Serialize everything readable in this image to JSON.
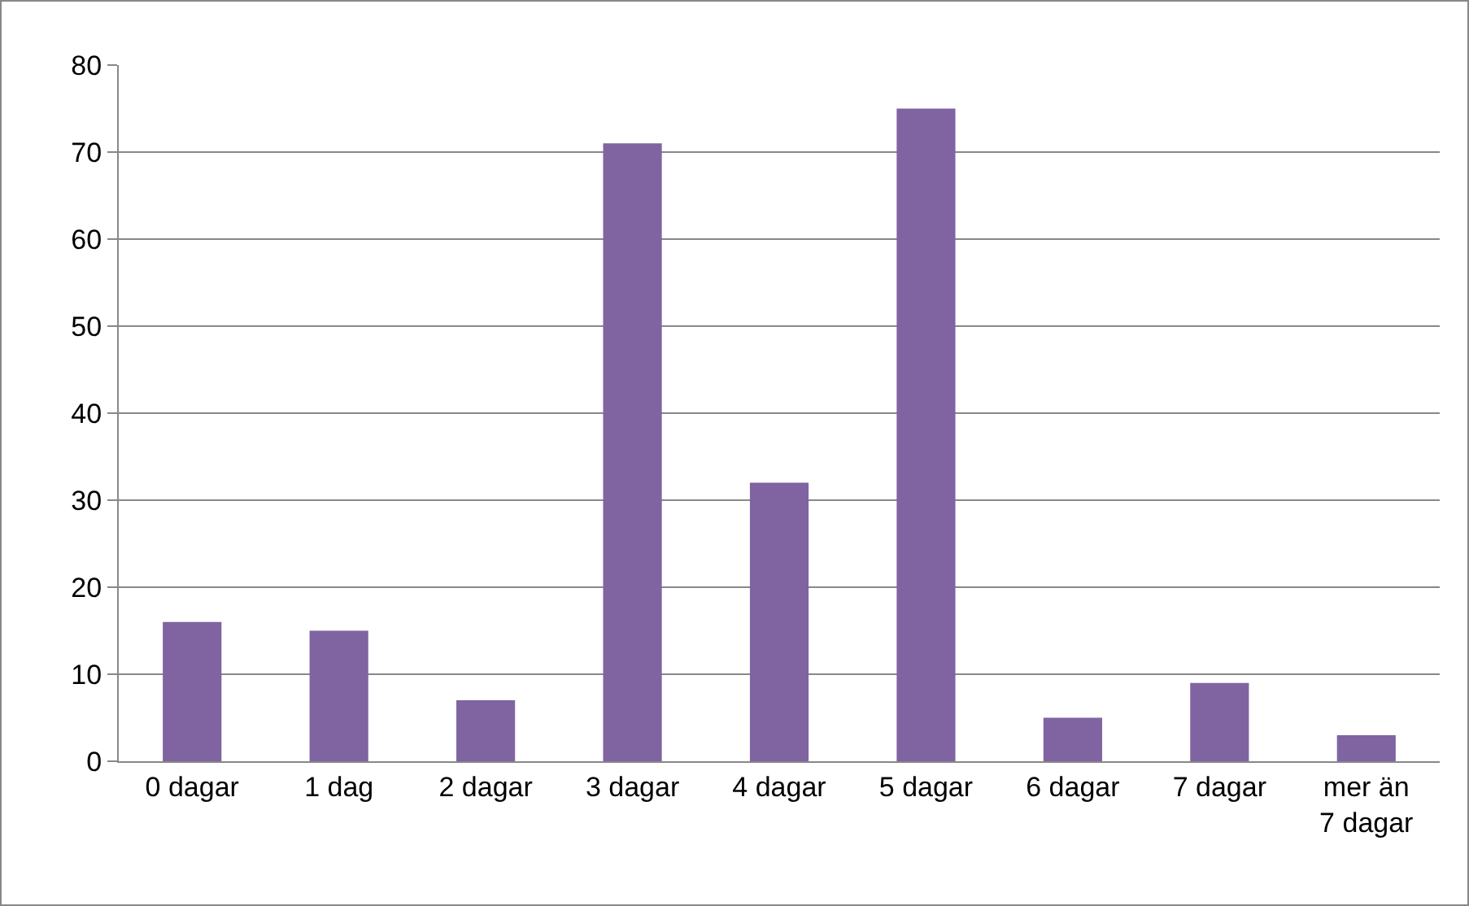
{
  "chart_data": {
    "type": "bar",
    "categories": [
      "0 dagar",
      "1 dag",
      "2 dagar",
      "3 dagar",
      "4 dagar",
      "5 dagar",
      "6 dagar",
      "7 dagar",
      "mer än 7 dagar"
    ],
    "values": [
      16,
      15,
      7,
      71,
      32,
      75,
      5,
      9,
      3
    ],
    "color": "#8064a2",
    "ylim": [
      0,
      80
    ],
    "yticks": [
      0,
      10,
      20,
      30,
      40,
      50,
      60,
      70,
      80
    ],
    "grid": "y"
  }
}
